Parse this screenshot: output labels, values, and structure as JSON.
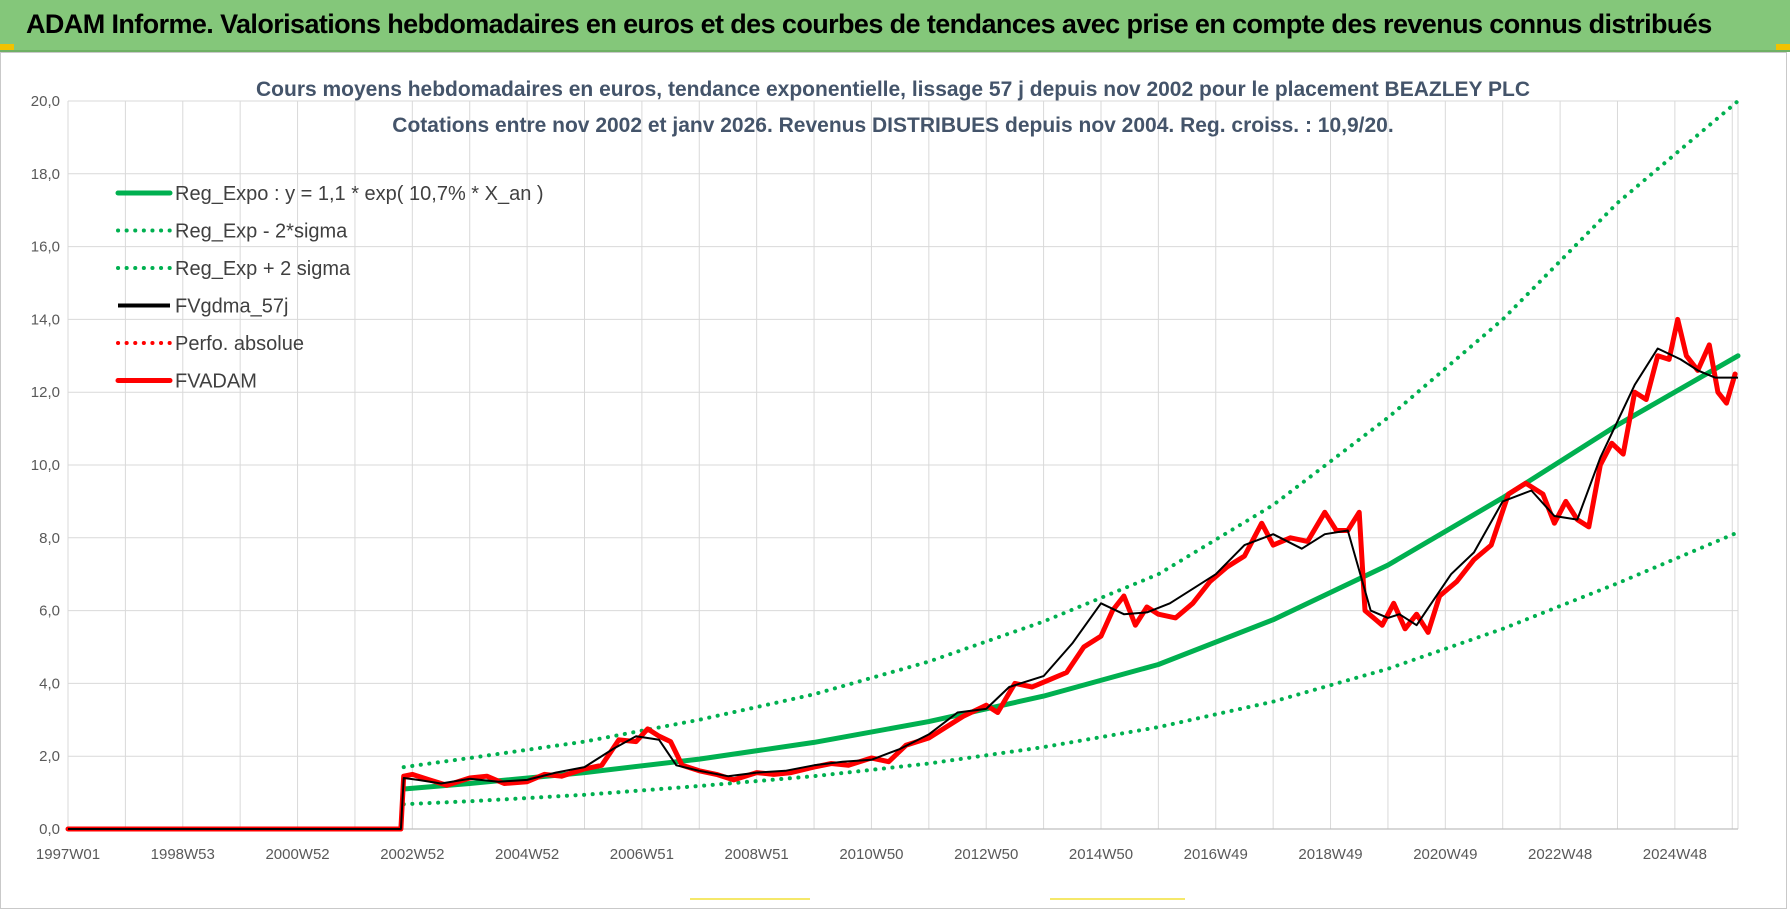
{
  "header": {
    "title": "ADAM Informe. Valorisations hebdomadaires en euros et des courbes de tendances avec prise en compte des revenus connus distribués"
  },
  "colors": {
    "banner": "#84c77a",
    "green": "#00b050",
    "red": "#ff0000",
    "black": "#000000"
  },
  "chart_data": {
    "type": "line",
    "title_line1": "Cours moyens hebdomadaires en euros, tendance exponentielle, lissage 57 j depuis nov 2002 pour le placement BEAZLEY PLC",
    "title_line2": "Cotations entre nov 2002 et janv 2026. Revenus DISTRIBUES depuis nov 2004. Reg. croiss. : 10,9/20.",
    "xlabel": "",
    "ylabel": "",
    "xlim": [
      1997.0,
      2026.1
    ],
    "ylim": [
      0,
      20
    ],
    "grid": true,
    "legend_position": "top-left",
    "y_ticks": [
      "0,0",
      "2,0",
      "4,0",
      "6,0",
      "8,0",
      "10,0",
      "12,0",
      "14,0",
      "16,0",
      "18,0",
      "20,0"
    ],
    "x_ticks": [
      {
        "x": 1997.0,
        "label": "1997W01"
      },
      {
        "x": 1999.0,
        "label": "1998W53"
      },
      {
        "x": 2001.0,
        "label": "2000W52"
      },
      {
        "x": 2003.0,
        "label": "2002W52"
      },
      {
        "x": 2005.0,
        "label": "2004W52"
      },
      {
        "x": 2007.0,
        "label": "2006W51"
      },
      {
        "x": 2009.0,
        "label": "2008W51"
      },
      {
        "x": 2011.0,
        "label": "2010W50"
      },
      {
        "x": 2013.0,
        "label": "2012W50"
      },
      {
        "x": 2015.0,
        "label": "2014W50"
      },
      {
        "x": 2017.0,
        "label": "2016W49"
      },
      {
        "x": 2019.0,
        "label": "2018W49"
      },
      {
        "x": 2021.0,
        "label": "2020W49"
      },
      {
        "x": 2023.0,
        "label": "2022W48"
      },
      {
        "x": 2025.0,
        "label": "2024W48"
      }
    ],
    "legend": [
      {
        "key": "reg_expo",
        "label": "Reg_Expo : y = 1,1 * exp( 10,7% *  X_an )"
      },
      {
        "key": "reg_minus",
        "label": "Reg_Exp - 2*sigma"
      },
      {
        "key": "reg_plus",
        "label": "Reg_Exp + 2 sigma"
      },
      {
        "key": "fvgdma",
        "label": "FVgdma_57j"
      },
      {
        "key": "perfo",
        "label": "Perfo. absolue"
      },
      {
        "key": "fvadam",
        "label": "FVADAM"
      }
    ],
    "series": [
      {
        "key": "reg_expo",
        "name": "Reg_Expo : y = 1,1 * exp( 10,7% *  X_an )",
        "style": "solid-thick",
        "color": "#00b050",
        "x": [
          2002.85,
          2004,
          2006,
          2008,
          2010,
          2012,
          2014,
          2016,
          2018,
          2020,
          2022,
          2024,
          2026.1
        ],
        "y": [
          1.1,
          1.25,
          1.55,
          1.92,
          2.38,
          2.95,
          3.65,
          4.52,
          5.75,
          7.25,
          9.1,
          11.1,
          13.0
        ]
      },
      {
        "key": "reg_minus",
        "name": "Reg_Exp - 2*sigma",
        "style": "dotted",
        "color": "#00b050",
        "x": [
          2002.85,
          2004,
          2006,
          2008,
          2010,
          2012,
          2014,
          2016,
          2018,
          2020,
          2022,
          2024,
          2026.1
        ],
        "y": [
          0.68,
          0.76,
          0.94,
          1.18,
          1.45,
          1.8,
          2.25,
          2.8,
          3.5,
          4.4,
          5.5,
          6.75,
          8.15
        ]
      },
      {
        "key": "reg_plus",
        "name": "Reg_Exp + 2 sigma",
        "style": "dotted",
        "color": "#00b050",
        "x": [
          2002.85,
          2004,
          2006,
          2008,
          2010,
          2012,
          2014,
          2016,
          2018,
          2020,
          2022,
          2024,
          2026.1
        ],
        "y": [
          1.7,
          1.95,
          2.4,
          3.0,
          3.7,
          4.6,
          5.7,
          7.0,
          8.9,
          11.3,
          14.0,
          17.2,
          20.0
        ]
      },
      {
        "key": "fvgdma",
        "name": "FVgdma_57j",
        "style": "solid-thin",
        "color": "#000000",
        "x": [
          1997.0,
          2002.8,
          2002.85,
          2003.1,
          2003.5,
          2004.0,
          2004.5,
          2005.0,
          2005.5,
          2006.0,
          2006.5,
          2006.9,
          2007.3,
          2007.6,
          2008.0,
          2008.5,
          2009.0,
          2009.5,
          2010.0,
          2010.5,
          2011.0,
          2011.5,
          2012.0,
          2012.5,
          2013.0,
          2013.4,
          2014.0,
          2014.5,
          2015.0,
          2015.4,
          2015.8,
          2016.2,
          2016.6,
          2017.0,
          2017.5,
          2018.0,
          2018.5,
          2018.9,
          2019.3,
          2019.7,
          2020.0,
          2020.2,
          2020.5,
          2020.8,
          2021.1,
          2021.5,
          2022.0,
          2022.5,
          2022.9,
          2023.3,
          2023.7,
          2024.0,
          2024.3,
          2024.7,
          2025.1,
          2025.4,
          2025.7,
          2026.1
        ],
        "y": [
          0.0,
          0.0,
          1.4,
          1.35,
          1.25,
          1.38,
          1.3,
          1.35,
          1.55,
          1.7,
          2.2,
          2.55,
          2.45,
          1.75,
          1.6,
          1.45,
          1.55,
          1.6,
          1.75,
          1.85,
          1.9,
          2.2,
          2.6,
          3.2,
          3.3,
          3.9,
          4.2,
          5.1,
          6.2,
          5.9,
          5.95,
          6.2,
          6.6,
          7.0,
          7.8,
          8.1,
          7.7,
          8.1,
          8.2,
          6.0,
          5.8,
          5.9,
          5.6,
          6.3,
          7.0,
          7.6,
          9.0,
          9.3,
          8.6,
          8.5,
          10.2,
          11.2,
          12.2,
          13.2,
          12.9,
          12.6,
          12.4,
          12.4
        ]
      },
      {
        "key": "perfo",
        "name": "Perfo. absolue",
        "style": "dotted",
        "color": "#ff0000",
        "x": [],
        "y": []
      },
      {
        "key": "fvadam",
        "name": "FVADAM",
        "style": "solid-thick",
        "color": "#ff0000",
        "x": [
          1997.0,
          2002.8,
          2002.85,
          2003.0,
          2003.3,
          2003.6,
          2004.0,
          2004.3,
          2004.6,
          2005.0,
          2005.3,
          2005.6,
          2006.0,
          2006.3,
          2006.6,
          2006.9,
          2007.1,
          2007.3,
          2007.5,
          2007.7,
          2008.0,
          2008.3,
          2008.6,
          2009.0,
          2009.3,
          2009.6,
          2010.0,
          2010.3,
          2010.6,
          2011.0,
          2011.3,
          2011.6,
          2012.0,
          2012.3,
          2012.6,
          2013.0,
          2013.2,
          2013.5,
          2013.8,
          2014.1,
          2014.4,
          2014.7,
          2015.0,
          2015.2,
          2015.4,
          2015.6,
          2015.8,
          2016.0,
          2016.3,
          2016.6,
          2016.9,
          2017.2,
          2017.5,
          2017.8,
          2018.0,
          2018.3,
          2018.6,
          2018.9,
          2019.1,
          2019.3,
          2019.5,
          2019.6,
          2019.75,
          2019.9,
          2020.1,
          2020.3,
          2020.5,
          2020.7,
          2020.9,
          2021.2,
          2021.5,
          2021.8,
          2022.1,
          2022.4,
          2022.7,
          2022.9,
          2023.1,
          2023.3,
          2023.5,
          2023.7,
          2023.9,
          2024.1,
          2024.3,
          2024.5,
          2024.7,
          2024.9,
          2025.05,
          2025.2,
          2025.4,
          2025.6,
          2025.75,
          2025.9,
          2026.05
        ],
        "y": [
          0.0,
          0.0,
          1.45,
          1.5,
          1.35,
          1.2,
          1.4,
          1.45,
          1.25,
          1.3,
          1.5,
          1.45,
          1.65,
          1.75,
          2.45,
          2.4,
          2.75,
          2.55,
          2.4,
          1.75,
          1.6,
          1.5,
          1.35,
          1.55,
          1.5,
          1.55,
          1.7,
          1.8,
          1.75,
          1.95,
          1.85,
          2.3,
          2.5,
          2.8,
          3.1,
          3.4,
          3.2,
          4.0,
          3.9,
          4.1,
          4.3,
          5.0,
          5.3,
          6.0,
          6.4,
          5.6,
          6.1,
          5.9,
          5.8,
          6.2,
          6.8,
          7.2,
          7.5,
          8.4,
          7.8,
          8.0,
          7.9,
          8.7,
          8.2,
          8.2,
          8.7,
          6.0,
          5.8,
          5.6,
          6.2,
          5.5,
          5.9,
          5.4,
          6.4,
          6.8,
          7.4,
          7.8,
          9.2,
          9.5,
          9.2,
          8.4,
          9.0,
          8.5,
          8.3,
          10.0,
          10.6,
          10.3,
          12.0,
          11.8,
          13.0,
          12.9,
          14.0,
          13.0,
          12.6,
          13.3,
          12.0,
          11.7,
          12.5
        ]
      }
    ]
  }
}
